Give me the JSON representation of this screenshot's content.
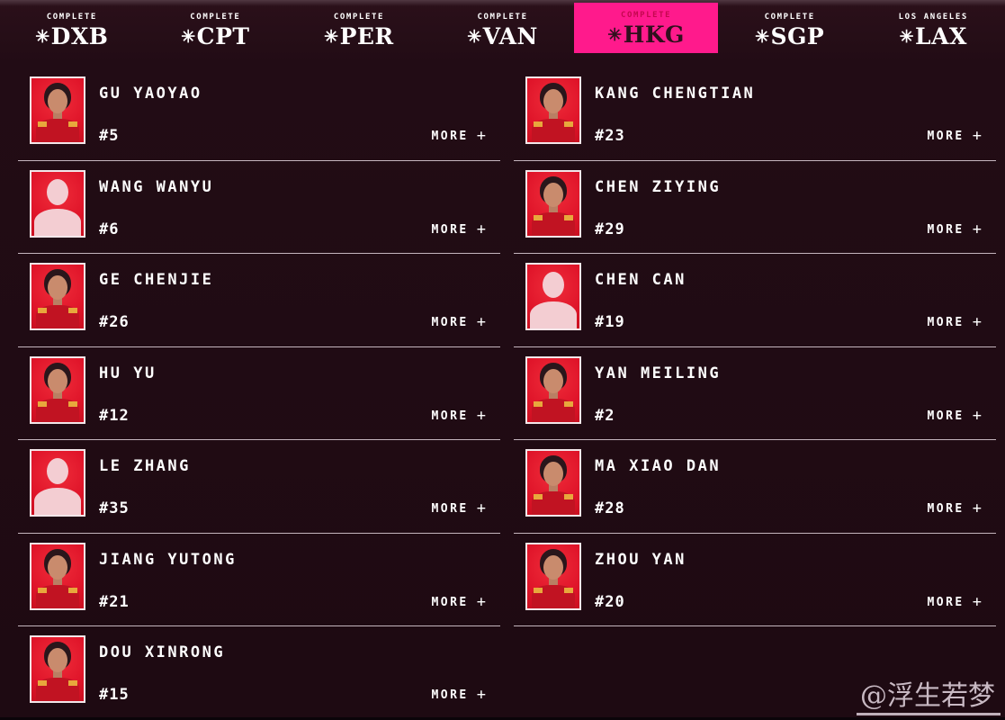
{
  "colors": {
    "background": "#1e0a12",
    "accent_pink": "#ff1a8c",
    "photo_red": "#e0152a",
    "silhouette_pink": "#f3cdd2",
    "divider": "#e2d3dc",
    "active_tab_text": "#30101d"
  },
  "star_glyph": "✳",
  "tabs": [
    {
      "status": "COMPLETE",
      "code": "DXB",
      "active": false
    },
    {
      "status": "COMPLETE",
      "code": "CPT",
      "active": false
    },
    {
      "status": "COMPLETE",
      "code": "PER",
      "active": false
    },
    {
      "status": "COMPLETE",
      "code": "VAN",
      "active": false
    },
    {
      "status": "COMPLETE",
      "code": "HKG",
      "active": true
    },
    {
      "status": "COMPLETE",
      "code": "SGP",
      "active": false
    },
    {
      "status": "LOS ANGELES",
      "code": "LAX",
      "active": false
    }
  ],
  "more": {
    "label": "MORE",
    "plus": "+"
  },
  "players_left": [
    {
      "name": "GU YAOYAO",
      "number": "#5",
      "photo": "photo"
    },
    {
      "name": "WANG WANYU",
      "number": "#6",
      "photo": "placeholder"
    },
    {
      "name": "GE CHENJIE",
      "number": "#26",
      "photo": "photo"
    },
    {
      "name": "HU YU",
      "number": "#12",
      "photo": "photo"
    },
    {
      "name": "LE ZHANG",
      "number": "#35",
      "photo": "placeholder"
    },
    {
      "name": "JIANG YUTONG",
      "number": "#21",
      "photo": "photo"
    },
    {
      "name": "DOU XINRONG",
      "number": "#15",
      "photo": "photo"
    }
  ],
  "players_right": [
    {
      "name": "KANG CHENGTIAN",
      "number": "#23",
      "photo": "photo"
    },
    {
      "name": "CHEN ZIYING",
      "number": "#29",
      "photo": "photo"
    },
    {
      "name": "CHEN CAN",
      "number": "#19",
      "photo": "placeholder"
    },
    {
      "name": "YAN MEILING",
      "number": "#2",
      "photo": "photo"
    },
    {
      "name": "MA XIAO DAN",
      "number": "#28",
      "photo": "photo"
    },
    {
      "name": "ZHOU YAN",
      "number": "#20",
      "photo": "photo"
    }
  ],
  "watermark": "@浮生若梦"
}
